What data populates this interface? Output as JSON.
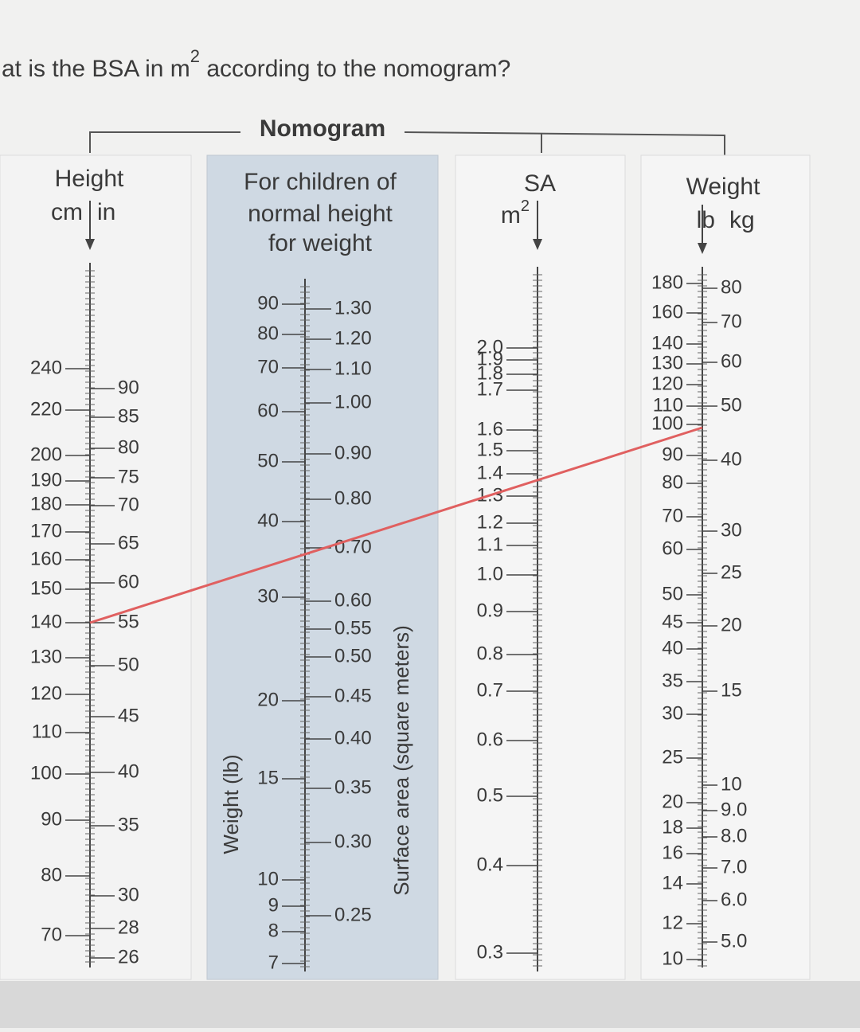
{
  "question": {
    "prefix": "at is the BSA in m",
    "superscript": "2",
    "suffix": " according to the nomogram?"
  },
  "title": "Nomogram",
  "height": {
    "title": "Height",
    "unit_left": "cm",
    "unit_right": "in",
    "cm": [
      "240",
      "220",
      "200",
      "190",
      "180",
      "170",
      "160",
      "150",
      "140",
      "130",
      "120",
      "110",
      "100",
      "90",
      "80",
      "70"
    ],
    "in": [
      "90",
      "85",
      "80",
      "75",
      "70",
      "65",
      "60",
      "55",
      "50",
      "45",
      "40",
      "35",
      "30",
      "28",
      "26"
    ]
  },
  "normal": {
    "title_lines": [
      "For children of",
      "normal height",
      "for weight"
    ],
    "weight_axis_label": "Weight (lb)",
    "sa_axis_label": "Surface area (square meters)",
    "weight": [
      "90",
      "80",
      "70",
      "60",
      "50",
      "40",
      "30",
      "20",
      "15",
      "10",
      "9",
      "8",
      "7"
    ],
    "sa": [
      "1.30",
      "1.20",
      "1.10",
      "1.00",
      "0.90",
      "0.80",
      "0.70",
      "0.60",
      "0.55",
      "0.50",
      "0.45",
      "0.40",
      "0.35",
      "0.30",
      "0.25"
    ]
  },
  "sa": {
    "title": "SA",
    "unit": "m",
    "unit_sup": "2",
    "values": [
      "2.0",
      "1.9",
      "1.8",
      "1.7",
      "1.6",
      "1.5",
      "1.4",
      "1.3",
      "1.2",
      "1.1",
      "1.0",
      "0.9",
      "0.8",
      "0.7",
      "0.6",
      "0.5",
      "0.4",
      "0.3"
    ]
  },
  "weight": {
    "title": "Weight",
    "unit_left": "lb",
    "unit_right": "kg",
    "lb": [
      "180",
      "160",
      "140",
      "130",
      "120",
      "110",
      "100",
      "90",
      "80",
      "70",
      "60",
      "50",
      "45",
      "40",
      "35",
      "30",
      "25",
      "20",
      "18",
      "16",
      "14",
      "12",
      "10"
    ],
    "kg": [
      "80",
      "70",
      "60",
      "50",
      "40",
      "30",
      "25",
      "20",
      "15",
      "10",
      "9.0",
      "8.0",
      "7.0",
      "6.0",
      "5.0"
    ]
  }
}
